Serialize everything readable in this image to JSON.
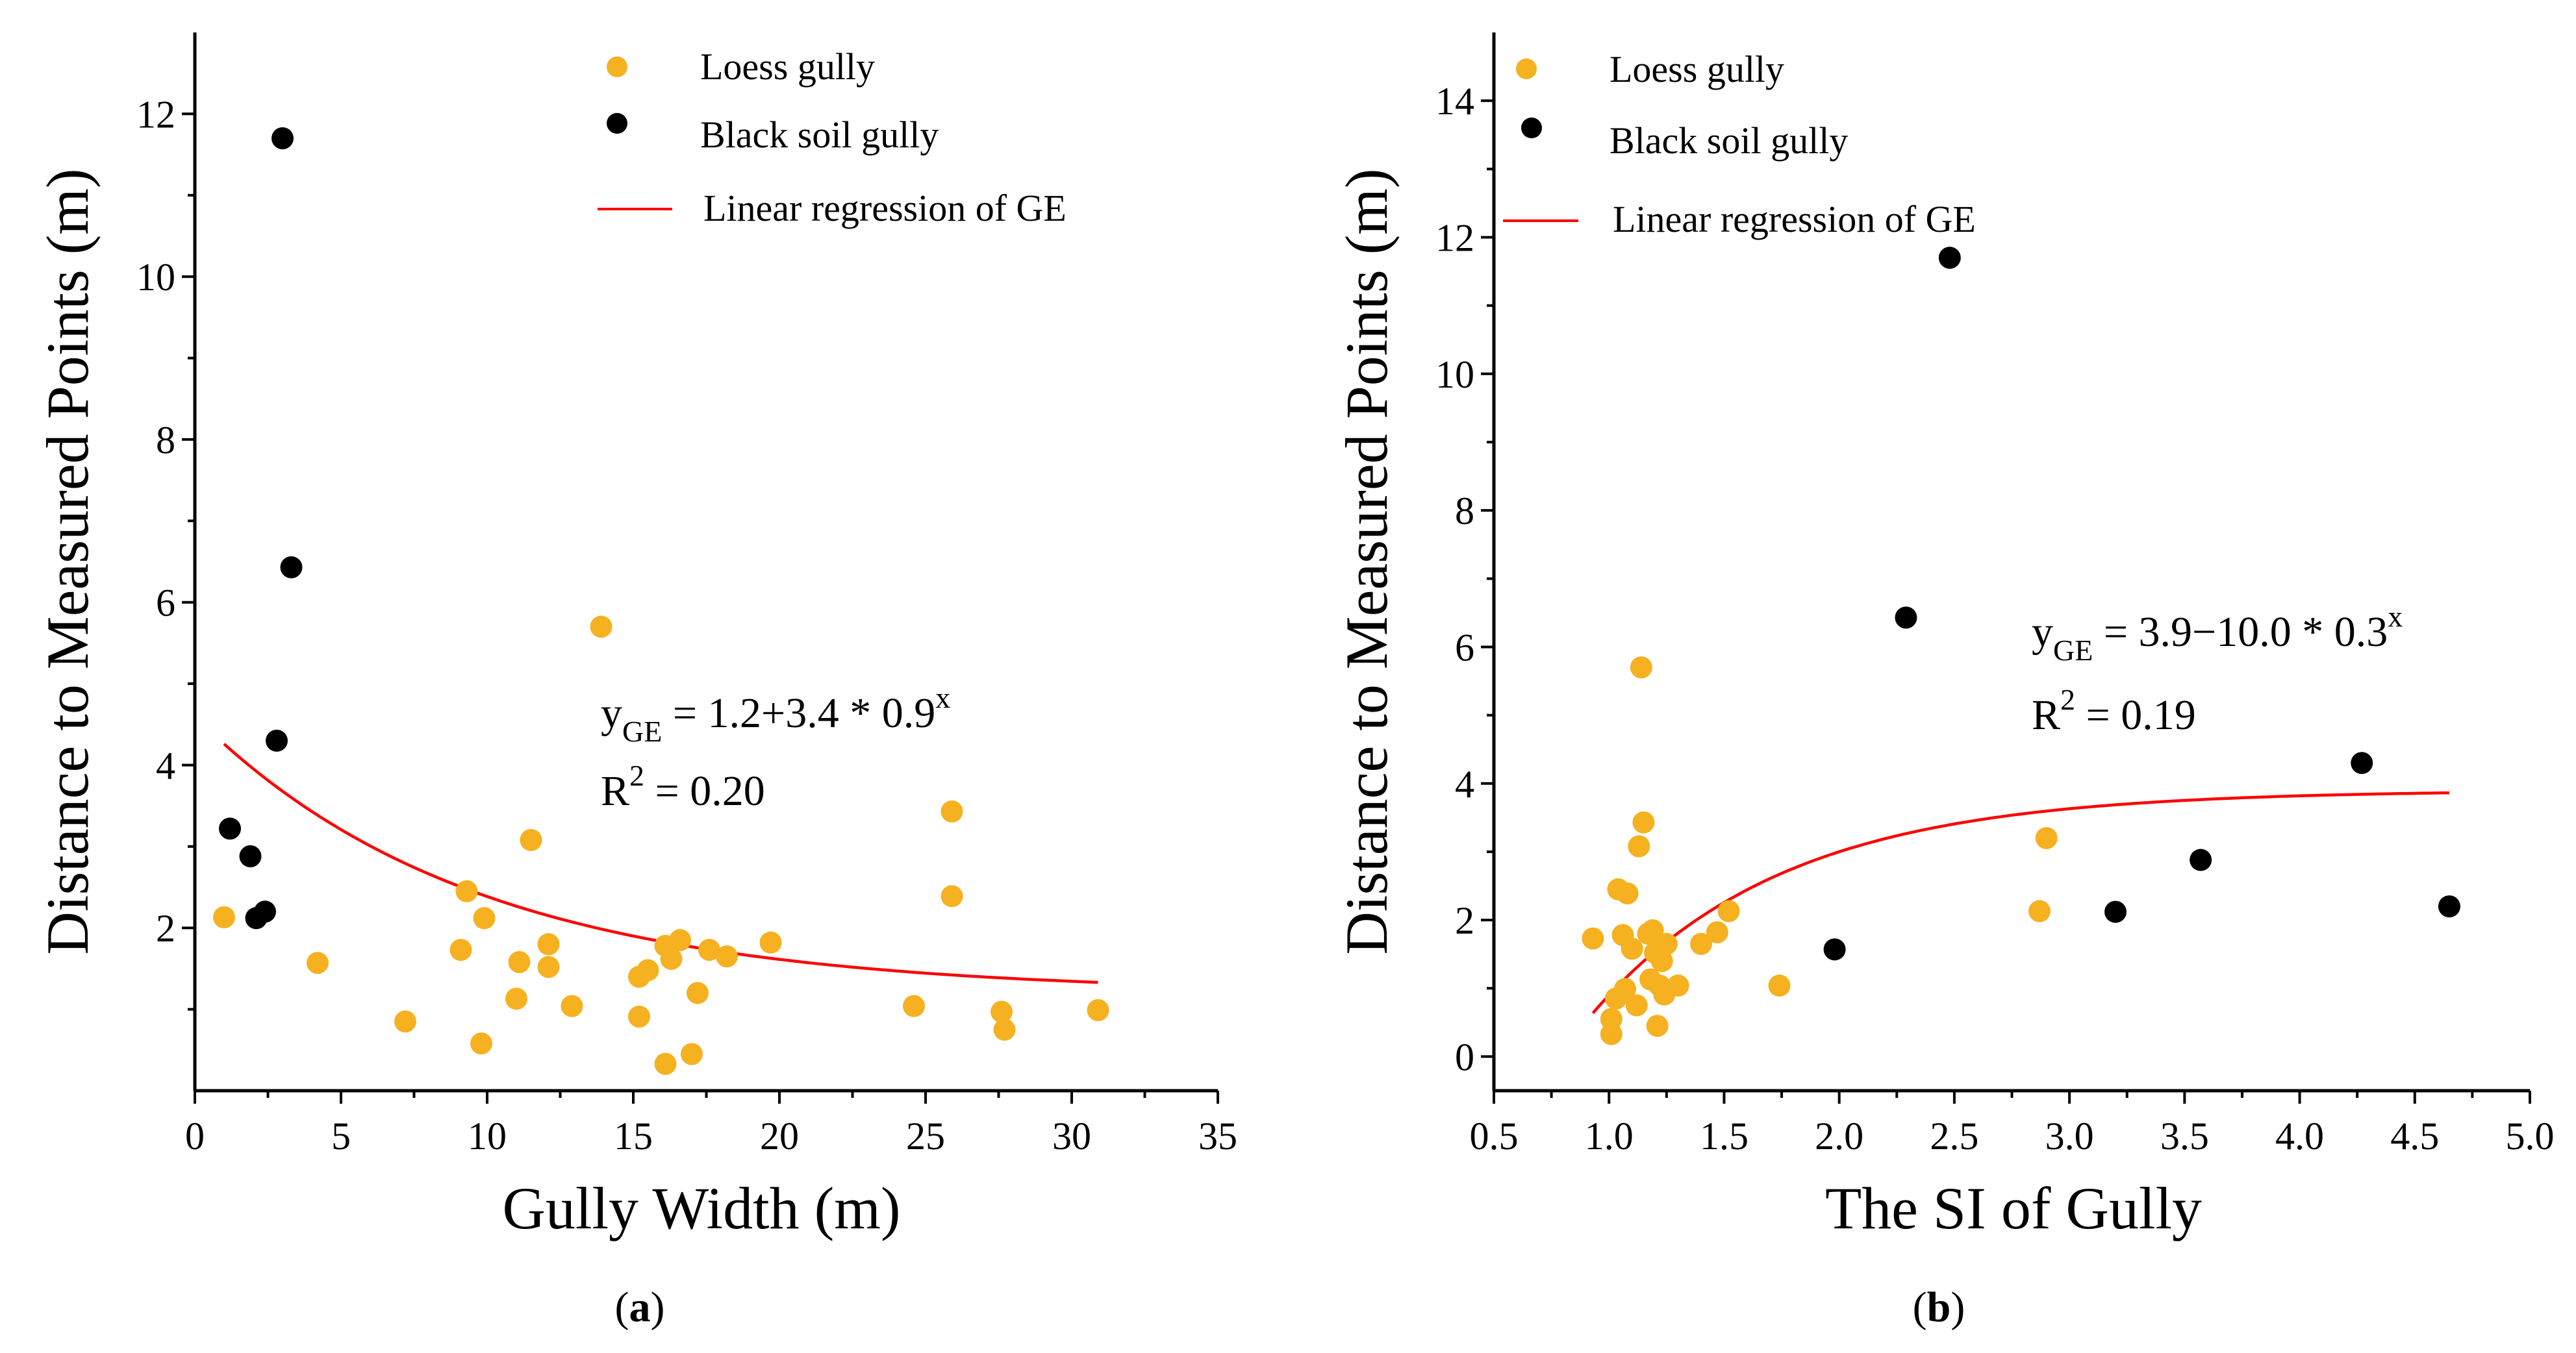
{
  "colors": {
    "loess": "#F5B120",
    "black_soil": "#000000",
    "regression": "#FF0000",
    "axis": "#000000"
  },
  "chart_data": [
    {
      "type": "scatter",
      "panel_label": "a",
      "xlabel": "Gully Width (m)",
      "ylabel": "Distance to Measured Points (m)",
      "xlim": [
        0,
        35
      ],
      "ylim": [
        0,
        13
      ],
      "x_ticks": [
        0,
        5,
        10,
        15,
        20,
        25,
        30,
        35
      ],
      "x_tick_labels": [
        "0",
        "5",
        "10",
        "15",
        "20",
        "25",
        "30",
        "35"
      ],
      "y_ticks": [
        2,
        4,
        6,
        8,
        10,
        12
      ],
      "y_tick_labels": [
        "2",
        "4",
        "6",
        "8",
        "10",
        "12"
      ],
      "legend": {
        "position": "top-center",
        "entries": [
          {
            "label": "Loess gully",
            "marker": "circle",
            "series": "loess"
          },
          {
            "label": "Black soil gully",
            "marker": "circle",
            "series": "black_soil"
          },
          {
            "label": "Linear regression of GE",
            "marker": "line",
            "series": "regression"
          }
        ]
      },
      "series": [
        {
          "name": "Loess gully",
          "key": "loess",
          "points": [
            [
              1.0,
              2.13
            ],
            [
              4.2,
              1.57
            ],
            [
              7.2,
              0.85
            ],
            [
              9.1,
              1.73
            ],
            [
              9.3,
              2.45
            ],
            [
              9.8,
              0.58
            ],
            [
              9.9,
              2.12
            ],
            [
              11.0,
              1.13
            ],
            [
              11.1,
              1.58
            ],
            [
              11.5,
              3.08
            ],
            [
              12.1,
              1.8
            ],
            [
              12.1,
              1.52
            ],
            [
              12.9,
              1.04
            ],
            [
              13.9,
              5.7
            ],
            [
              15.2,
              0.91
            ],
            [
              15.2,
              1.4
            ],
            [
              15.5,
              1.48
            ],
            [
              16.1,
              0.33
            ],
            [
              16.1,
              1.78
            ],
            [
              16.3,
              1.62
            ],
            [
              16.6,
              1.85
            ],
            [
              17.0,
              0.45
            ],
            [
              17.2,
              1.2
            ],
            [
              17.6,
              1.73
            ],
            [
              18.2,
              1.65
            ],
            [
              19.7,
              1.82
            ],
            [
              24.6,
              1.04
            ],
            [
              25.9,
              3.43
            ],
            [
              25.9,
              2.39
            ],
            [
              27.6,
              0.97
            ],
            [
              27.7,
              0.75
            ],
            [
              30.9,
              0.99
            ]
          ]
        },
        {
          "name": "Black soil gully",
          "key": "black_soil",
          "points": [
            [
              1.2,
              3.22
            ],
            [
              1.9,
              2.88
            ],
            [
              2.1,
              2.12
            ],
            [
              2.4,
              2.2
            ],
            [
              2.8,
              4.3
            ],
            [
              3.0,
              11.7
            ],
            [
              3.3,
              6.43
            ]
          ]
        }
      ],
      "regression": {
        "label": "Linear regression of GE",
        "formula": "y = 1.2 + 3.4 * 0.9^x",
        "a": 1.2,
        "b": 3.4,
        "c": 0.9,
        "x_range": [
          1.0,
          30.9
        ]
      },
      "equation": {
        "y": "y",
        "sub": "GE",
        "rhs": " = 1.2+3.4 * 0.9",
        "sup": "x",
        "r2_prefix": "R",
        "r2_sup": "2",
        "r2_rhs": " = 0.20"
      }
    },
    {
      "type": "scatter",
      "panel_label": "b",
      "xlabel": "The SI of Gully",
      "ylabel": "Distance to Measured Points (m)",
      "xlim": [
        0.5,
        5.0
      ],
      "ylim": [
        -0.5,
        15
      ],
      "x_ticks": [
        0.5,
        1.0,
        1.5,
        2.0,
        2.5,
        3.0,
        3.5,
        4.0,
        4.5,
        5.0
      ],
      "x_tick_labels": [
        "0.5",
        "1.0",
        "1.5",
        "2.0",
        "2.5",
        "3.0",
        "3.5",
        "4.0",
        "4.5",
        "5.0"
      ],
      "y_ticks": [
        0,
        2,
        4,
        6,
        8,
        10,
        12,
        14
      ],
      "y_tick_labels": [
        "0",
        "2",
        "4",
        "6",
        "8",
        "10",
        "12",
        "14"
      ],
      "legend": {
        "position": "top-left",
        "entries": [
          {
            "label": "Loess gully",
            "marker": "circle",
            "series": "loess"
          },
          {
            "label": "Black soil gully",
            "marker": "circle",
            "series": "black_soil"
          },
          {
            "label": "Linear regression of GE",
            "marker": "line",
            "series": "regression"
          }
        ]
      },
      "series": [
        {
          "name": "Loess gully",
          "key": "loess",
          "points": [
            [
              0.93,
              1.73
            ],
            [
              1.01,
              0.55
            ],
            [
              1.01,
              0.33
            ],
            [
              1.03,
              0.85
            ],
            [
              1.04,
              2.45
            ],
            [
              1.06,
              1.78
            ],
            [
              1.07,
              0.99
            ],
            [
              1.08,
              2.39
            ],
            [
              1.1,
              1.58
            ],
            [
              1.12,
              0.75
            ],
            [
              1.13,
              3.08
            ],
            [
              1.14,
              5.7
            ],
            [
              1.15,
              3.43
            ],
            [
              1.17,
              1.8
            ],
            [
              1.18,
              1.13
            ],
            [
              1.19,
              1.85
            ],
            [
              1.2,
              1.52
            ],
            [
              1.21,
              0.45
            ],
            [
              1.22,
              1.04
            ],
            [
              1.23,
              1.4
            ],
            [
              1.24,
              0.91
            ],
            [
              1.25,
              1.65
            ],
            [
              1.3,
              1.04
            ],
            [
              1.4,
              1.65
            ],
            [
              1.47,
              1.82
            ],
            [
              1.52,
              2.13
            ],
            [
              1.74,
              1.04
            ],
            [
              2.87,
              2.13
            ],
            [
              2.9,
              3.2
            ]
          ]
        },
        {
          "name": "Black soil gully",
          "key": "black_soil",
          "points": [
            [
              1.98,
              1.57
            ],
            [
              2.29,
              6.43
            ],
            [
              2.48,
              11.7
            ],
            [
              3.2,
              2.12
            ],
            [
              3.57,
              2.88
            ],
            [
              4.27,
              4.3
            ],
            [
              4.65,
              2.2
            ]
          ]
        }
      ],
      "regression": {
        "label": "Linear regression of GE",
        "formula": "y = 3.9 - 10.0 * 0.3^x",
        "a": 3.9,
        "b": -10.0,
        "c": 0.3,
        "x_range": [
          0.93,
          4.65
        ]
      },
      "equation": {
        "y": "y",
        "sub": "GE",
        "rhs": " = 3.9−10.0 * 0.3",
        "sup": "x",
        "r2_prefix": "R",
        "r2_sup": "2",
        "r2_rhs": " = 0.19"
      }
    }
  ]
}
